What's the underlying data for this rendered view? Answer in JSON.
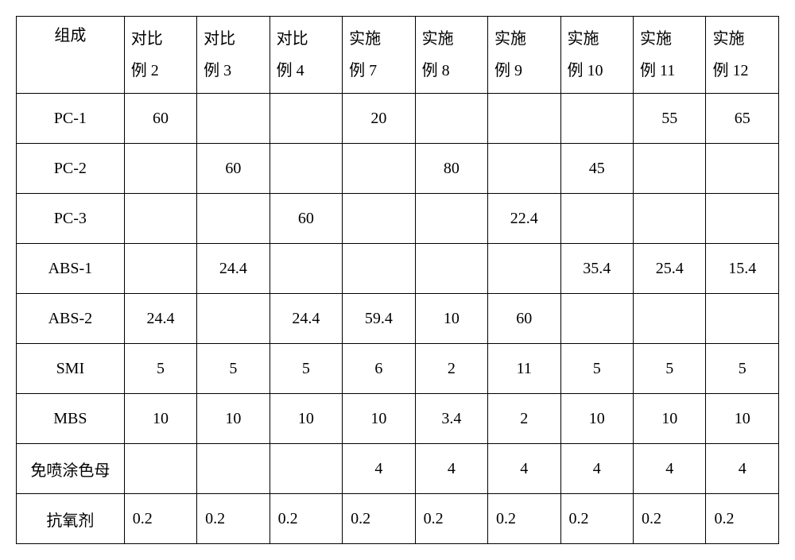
{
  "table": {
    "columns_line1": [
      "组成",
      "对比",
      "对比",
      "对比",
      "实施",
      "实施",
      "实施",
      "实施",
      "实施",
      "实施"
    ],
    "columns_line2": [
      "",
      "例 2",
      "例 3",
      "例 4",
      "例 7",
      "例 8",
      "例 9",
      "例 10",
      "例 11",
      "例 12"
    ],
    "row_labels": [
      "PC-1",
      "PC-2",
      "PC-3",
      "ABS-1",
      "ABS-2",
      "SMI",
      "MBS",
      "免喷涂色母",
      "抗氧剂"
    ],
    "rows": [
      {
        "align": "center",
        "cells": [
          "60",
          "",
          "",
          "20",
          "",
          "",
          "",
          "55",
          "65"
        ]
      },
      {
        "align": "center",
        "cells": [
          "",
          "60",
          "",
          "",
          "80",
          "",
          "45",
          "",
          ""
        ]
      },
      {
        "align": "center",
        "cells": [
          "",
          "",
          "60",
          "",
          "",
          "22.4",
          "",
          "",
          ""
        ]
      },
      {
        "align": "center",
        "cells": [
          "",
          "24.4",
          "",
          "",
          "",
          "",
          "35.4",
          "25.4",
          "15.4"
        ]
      },
      {
        "align": "center",
        "cells": [
          "24.4",
          "",
          "24.4",
          "59.4",
          "10",
          "60",
          "",
          "",
          ""
        ]
      },
      {
        "align": "center",
        "cells": [
          "5",
          "5",
          "5",
          "6",
          "2",
          "11",
          "5",
          "5",
          "5"
        ]
      },
      {
        "align": "center",
        "cells": [
          "10",
          "10",
          "10",
          "10",
          "3.4",
          "2",
          "10",
          "10",
          "10"
        ]
      },
      {
        "align": "center",
        "cells": [
          "",
          "",
          "",
          "4",
          "4",
          "4",
          "4",
          "4",
          "4"
        ]
      },
      {
        "align": "left",
        "cells": [
          "0.2",
          "0.2",
          "0.2",
          "0.2",
          "0.2",
          "0.2",
          "0.2",
          "0.2",
          "0.2"
        ]
      }
    ]
  }
}
